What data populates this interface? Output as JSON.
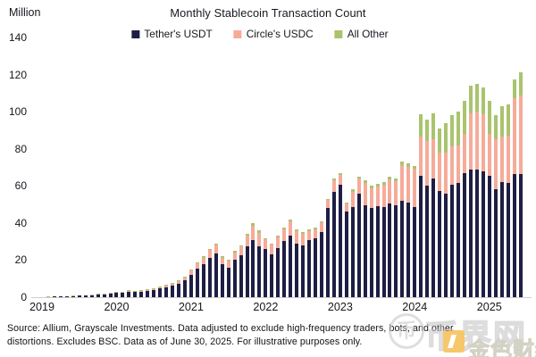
{
  "header": {
    "title": "Monthly Stablecoin Transaction Count",
    "y_axis_unit": "Million"
  },
  "legend": [
    {
      "label": "Tether's USDT",
      "color": "#1e1e44"
    },
    {
      "label": "Circle's USDC",
      "color": "#f6ab99"
    },
    {
      "label": "All Other",
      "color": "#a9c46e"
    }
  ],
  "chart_data": {
    "type": "bar",
    "stacked": true,
    "title": "Monthly Stablecoin Transaction Count",
    "ylabel": "Million",
    "xlabel": "",
    "ylim": [
      0,
      140
    ],
    "yticks": [
      0,
      20,
      40,
      60,
      80,
      100,
      120,
      140
    ],
    "xticks": [
      "2019",
      "2020",
      "2021",
      "2022",
      "2023",
      "2024",
      "2025"
    ],
    "grid": false,
    "legend_position": "top",
    "months": [
      "2019-01",
      "2019-02",
      "2019-03",
      "2019-04",
      "2019-05",
      "2019-06",
      "2019-07",
      "2019-08",
      "2019-09",
      "2019-10",
      "2019-11",
      "2019-12",
      "2020-01",
      "2020-02",
      "2020-03",
      "2020-04",
      "2020-05",
      "2020-06",
      "2020-07",
      "2020-08",
      "2020-09",
      "2020-10",
      "2020-11",
      "2020-12",
      "2021-01",
      "2021-02",
      "2021-03",
      "2021-04",
      "2021-05",
      "2021-06",
      "2021-07",
      "2021-08",
      "2021-09",
      "2021-10",
      "2021-11",
      "2021-12",
      "2022-01",
      "2022-02",
      "2022-03",
      "2022-04",
      "2022-05",
      "2022-06",
      "2022-07",
      "2022-08",
      "2022-09",
      "2022-10",
      "2022-11",
      "2022-12",
      "2023-01",
      "2023-02",
      "2023-03",
      "2023-04",
      "2023-05",
      "2023-06",
      "2023-07",
      "2023-08",
      "2023-09",
      "2023-10",
      "2023-11",
      "2023-12",
      "2024-01",
      "2024-02",
      "2024-03",
      "2024-04",
      "2024-05",
      "2024-06",
      "2024-07",
      "2024-08",
      "2024-09",
      "2024-10",
      "2024-11",
      "2024-12",
      "2025-01",
      "2025-02",
      "2025-03",
      "2025-04",
      "2025-05",
      "2025-06"
    ],
    "series": [
      {
        "name": "Tether's USDT",
        "color": "#1e1e44",
        "values": [
          0.1,
          0.2,
          0.3,
          0.3,
          0.4,
          0.6,
          0.8,
          0.9,
          1.2,
          1.5,
          1.7,
          2.0,
          2.2,
          2.5,
          3.0,
          2.7,
          3.0,
          3.3,
          3.8,
          4.6,
          5.4,
          6.2,
          7.4,
          9.0,
          12.2,
          15.4,
          17.8,
          21.0,
          23.4,
          17.6,
          16.0,
          20.2,
          22.6,
          27.5,
          31.0,
          27.5,
          25.8,
          23.1,
          26.3,
          30.3,
          33.0,
          28.7,
          27.9,
          30.6,
          31.6,
          35.1,
          47.9,
          56.7,
          60.7,
          46.3,
          48.7,
          56.0,
          49.5,
          48.0,
          49.0,
          48.7,
          50.3,
          49.5,
          51.9,
          51.1,
          48.7,
          65.5,
          60.0,
          63.9,
          57.5,
          56.0,
          60.7,
          61.5,
          67.0,
          68.7,
          68.7,
          68.0,
          65.5,
          58.3,
          62.3,
          61.5,
          66.3,
          66.3
        ]
      },
      {
        "name": "Circle's USDC",
        "color": "#f6ab99",
        "values": [
          0.03,
          0.04,
          0.05,
          0.06,
          0.08,
          0.1,
          0.1,
          0.15,
          0.15,
          0.15,
          0.2,
          0.3,
          0.3,
          0.4,
          0.5,
          0.4,
          0.5,
          0.6,
          0.6,
          0.8,
          1.0,
          1.1,
          1.3,
          1.6,
          2.4,
          3.1,
          3.6,
          4.3,
          4.8,
          3.8,
          3.5,
          4.1,
          4.6,
          5.6,
          7.5,
          7.3,
          5.4,
          5.1,
          5.8,
          6.2,
          7.8,
          6.8,
          6.1,
          5.1,
          5.1,
          5.1,
          4.4,
          6.3,
          5.4,
          4.1,
          8.3,
          8.0,
          12.0,
          10.5,
          10.5,
          11.8,
          13.2,
          13.0,
          19.2,
          19.3,
          20.8,
          20.9,
          24.0,
          21.1,
          20.5,
          22.0,
          20.8,
          20.5,
          21.0,
          30.3,
          31.3,
          30.4,
          22.5,
          26.7,
          24.1,
          25.7,
          40.9,
          42.5
        ]
      },
      {
        "name": "All Other",
        "color": "#a9c46e",
        "values": [
          0.02,
          0.03,
          0.05,
          0.06,
          0.07,
          0.1,
          0.1,
          0.15,
          0.15,
          0.15,
          0.2,
          0.2,
          0.2,
          0.2,
          0.3,
          0.2,
          0.3,
          0.3,
          0.3,
          0.4,
          0.4,
          0.5,
          0.5,
          0.6,
          0.4,
          0.5,
          0.6,
          0.7,
          0.8,
          0.6,
          0.5,
          0.7,
          0.8,
          0.9,
          1.5,
          1.2,
          0.8,
          0.8,
          0.9,
          1.0,
          1.2,
          1.0,
          1.0,
          0.8,
          0.8,
          0.8,
          0.7,
          1.0,
          0.9,
          0.6,
          1.0,
          1.0,
          1.5,
          1.5,
          1.5,
          1.5,
          1.5,
          1.5,
          1.9,
          1.6,
          1.5,
          12.0,
          12.0,
          14.0,
          13.0,
          16.0,
          16.5,
          18.0,
          18.0,
          15.0,
          15.0,
          14.6,
          18.0,
          13.0,
          16.6,
          16.8,
          10.4,
          12.2
        ]
      }
    ]
  },
  "footer": {
    "source_line1": "Source: Allium, Grayscale Investments. Data adjusted to exclude high-frequency traders, bots, and other",
    "source_line2": "distortions. Excludes BSC. Data as of June 30, 2025. For illustrative purposes only."
  },
  "watermark": {
    "coin_glyph": "币",
    "site_text": "币界网",
    "gold_text": "金色财经"
  }
}
